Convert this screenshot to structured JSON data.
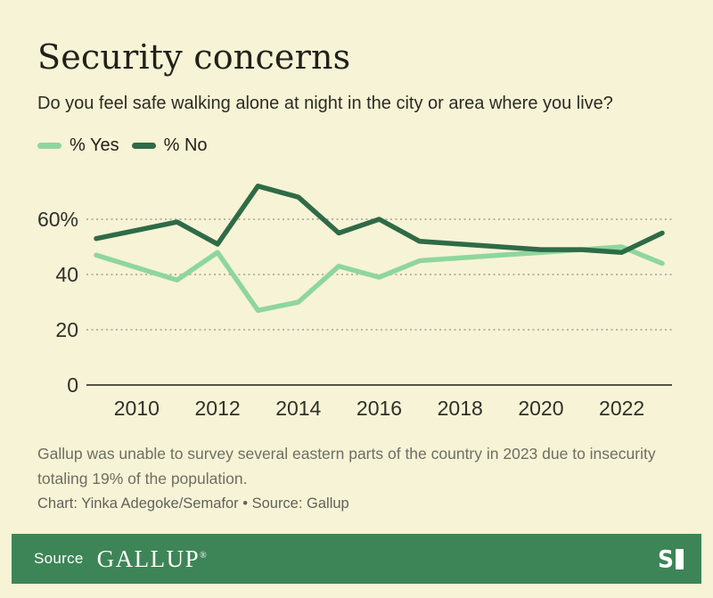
{
  "page": {
    "background": "#f7f3d6"
  },
  "header": {
    "title": "Security concerns",
    "subtitle": "Do you feel safe walking alone at night in the city or area where you live?"
  },
  "legend": [
    {
      "label": "% Yes",
      "color": "#8ed69e"
    },
    {
      "label": "% No",
      "color": "#2e6b46"
    }
  ],
  "chart_data": {
    "type": "line",
    "x": [
      2009,
      2011,
      2012,
      2013,
      2014,
      2015,
      2016,
      2017,
      2018,
      2019,
      2020,
      2021,
      2022,
      2023
    ],
    "series": [
      {
        "name": "% Yes",
        "color": "#8ed69e",
        "values": [
          47,
          38,
          48,
          27,
          30,
          43,
          39,
          45,
          46,
          47,
          48,
          49,
          50,
          44
        ]
      },
      {
        "name": "% No",
        "color": "#2e6b46",
        "values": [
          53,
          59,
          51,
          72,
          68,
          55,
          60,
          52,
          51,
          50,
          49,
          49,
          48,
          55
        ]
      }
    ],
    "title": "Security concerns",
    "xlabel": "",
    "ylabel": "",
    "xlim": [
      2009,
      2023
    ],
    "ylim": [
      0,
      80
    ],
    "xticks": [
      2010,
      2012,
      2014,
      2016,
      2018,
      2020,
      2022
    ],
    "yticks": [
      {
        "value": 60,
        "label": "60%"
      },
      {
        "value": 40,
        "label": "40"
      },
      {
        "value": 20,
        "label": "20"
      },
      {
        "value": 0,
        "label": "0"
      }
    ],
    "grid": "horizontal-dotted",
    "legend_position": "top-left",
    "gridline_color": "#a1a192",
    "axis_color": "#1c1c16"
  },
  "notes": {
    "footnote": "Gallup was unable to survey several eastern parts of the country in 2023 due to insecurity totaling 19% of the population.",
    "credit": "Chart: Yinka Adegoke/Semafor • Source: Gallup"
  },
  "footer": {
    "source_label": "Source",
    "brand": "GALLUP",
    "registered_mark": "®",
    "logo": "semafor-flag-icon",
    "background": "#3d8557"
  }
}
